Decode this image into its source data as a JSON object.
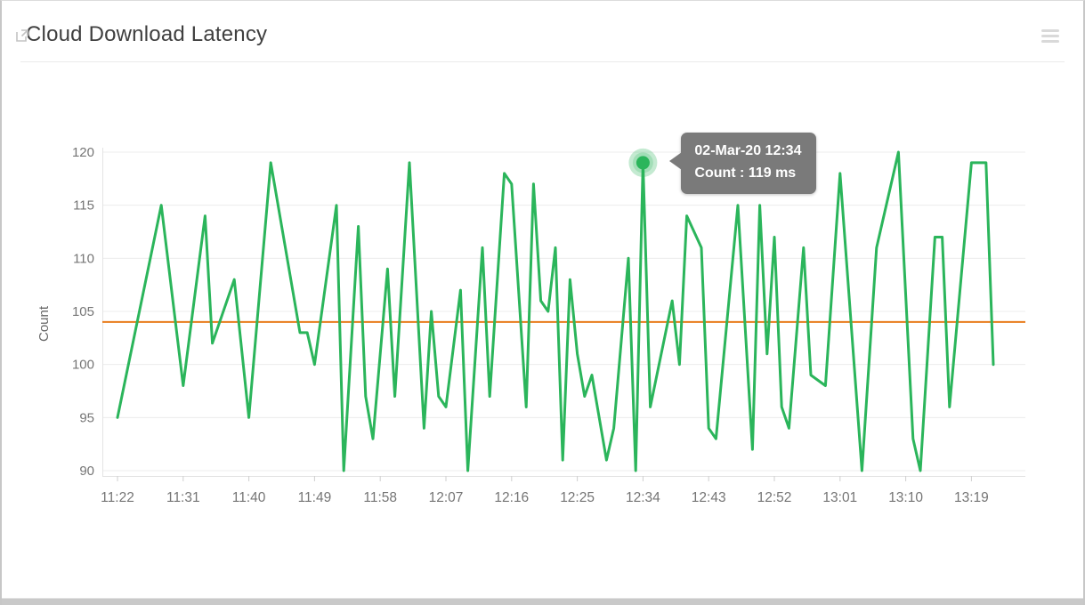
{
  "header": {
    "title": "Cloud Download Latency",
    "external_link_icon": "open-in-new-icon",
    "menu_icon": "hamburger-menu-icon"
  },
  "tooltip": {
    "line1": "02-Mar-20 12:34",
    "line2": "Count : 119 ms"
  },
  "colors": {
    "series_green": "#2bb55b",
    "threshold_orange": "#e87b1c",
    "tooltip_gray": "#7a7a7a",
    "grid_line": "#ececec",
    "axis_text": "#757575",
    "title_text": "#3f3f3f"
  },
  "chart_data": {
    "type": "line",
    "title": "Cloud Download Latency",
    "xlabel": "",
    "ylabel": "Count",
    "unit": "ms",
    "ylim": [
      90,
      120
    ],
    "yticks": [
      90,
      95,
      100,
      105,
      110,
      115,
      120
    ],
    "x_tick_labels": [
      "11:22",
      "11:31",
      "11:40",
      "11:49",
      "11:58",
      "12:07",
      "12:16",
      "12:25",
      "12:34",
      "12:43",
      "12:52",
      "13:01",
      "13:10",
      "13:19"
    ],
    "x_tick_interval_minutes": 9,
    "grid": "horizontal-only",
    "legend": "none",
    "threshold": {
      "value": 104,
      "color": "#e87b1c"
    },
    "highlight": {
      "time": "12:34",
      "minute": 72,
      "value": 119,
      "date": "02-Mar-20"
    },
    "points_format": [
      "minute_offset_from_start",
      "time",
      "value_ms"
    ],
    "series": [
      {
        "name": "Count",
        "color": "#2bb55b",
        "points": [
          [
            0,
            "11:22",
            95
          ],
          [
            6,
            "11:28",
            115
          ],
          [
            9,
            "11:31",
            98
          ],
          [
            12,
            "11:34",
            114
          ],
          [
            13,
            "11:35",
            102
          ],
          [
            16,
            "11:38",
            108
          ],
          [
            18,
            "11:40",
            95
          ],
          [
            21,
            "11:43",
            119
          ],
          [
            25,
            "11:47",
            103
          ],
          [
            26,
            "11:48",
            103
          ],
          [
            27,
            "11:49",
            100
          ],
          [
            30,
            "11:52",
            115
          ],
          [
            31,
            "11:53",
            90
          ],
          [
            33,
            "11:55",
            113
          ],
          [
            34,
            "11:56",
            97
          ],
          [
            35,
            "11:57",
            93
          ],
          [
            37,
            "11:59",
            109
          ],
          [
            38,
            "12:00",
            97
          ],
          [
            40,
            "12:02",
            119
          ],
          [
            42,
            "12:04",
            94
          ],
          [
            43,
            "12:05",
            105
          ],
          [
            44,
            "12:06",
            97
          ],
          [
            45,
            "12:07",
            96
          ],
          [
            47,
            "12:09",
            107
          ],
          [
            48,
            "12:10",
            90
          ],
          [
            50,
            "12:12",
            111
          ],
          [
            51,
            "12:13",
            97
          ],
          [
            53,
            "12:15",
            118
          ],
          [
            54,
            "12:16",
            117
          ],
          [
            56,
            "12:18",
            96
          ],
          [
            57,
            "12:19",
            117
          ],
          [
            58,
            "12:20",
            106
          ],
          [
            59,
            "12:21",
            105
          ],
          [
            60,
            "12:22",
            111
          ],
          [
            61,
            "12:23",
            91
          ],
          [
            62,
            "12:24",
            108
          ],
          [
            63,
            "12:25",
            101
          ],
          [
            64,
            "12:26",
            97
          ],
          [
            65,
            "12:27",
            99
          ],
          [
            67,
            "12:29",
            91
          ],
          [
            68,
            "12:30",
            94
          ],
          [
            70,
            "12:32",
            110
          ],
          [
            71,
            "12:33",
            90
          ],
          [
            72,
            "12:34",
            119
          ],
          [
            73,
            "12:35",
            96
          ],
          [
            76,
            "12:38",
            106
          ],
          [
            77,
            "12:39",
            100
          ],
          [
            78,
            "12:40",
            114
          ],
          [
            80,
            "12:42",
            111
          ],
          [
            81,
            "12:43",
            94
          ],
          [
            82,
            "12:44",
            93
          ],
          [
            85,
            "12:47",
            115
          ],
          [
            87,
            "12:49",
            92
          ],
          [
            88,
            "12:50",
            115
          ],
          [
            89,
            "12:51",
            101
          ],
          [
            90,
            "12:52",
            112
          ],
          [
            91,
            "12:53",
            96
          ],
          [
            92,
            "12:54",
            94
          ],
          [
            94,
            "12:56",
            111
          ],
          [
            95,
            "12:57",
            99
          ],
          [
            97,
            "12:59",
            98
          ],
          [
            99,
            "13:01",
            118
          ],
          [
            102,
            "13:04",
            90
          ],
          [
            104,
            "13:06",
            111
          ],
          [
            107,
            "13:09",
            120
          ],
          [
            109,
            "13:11",
            93
          ],
          [
            110,
            "13:12",
            90
          ],
          [
            112,
            "13:14",
            112
          ],
          [
            113,
            "13:15",
            112
          ],
          [
            114,
            "13:16",
            96
          ],
          [
            117,
            "13:19",
            119
          ],
          [
            119,
            "13:21",
            119
          ],
          [
            120,
            "13:22",
            100
          ]
        ]
      }
    ]
  }
}
